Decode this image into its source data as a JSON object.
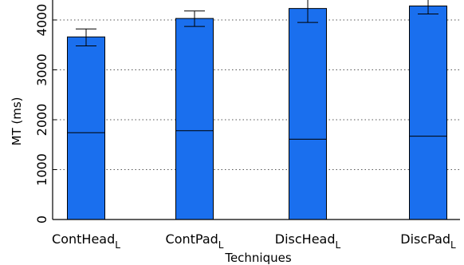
{
  "chart_data": {
    "type": "bar",
    "title": "",
    "xlabel": "Techniques",
    "ylabel": "MT (ms)",
    "ylim": [
      0,
      4400
    ],
    "yticks": [
      0,
      1000,
      2000,
      3000,
      4000
    ],
    "grid": true,
    "categories": [
      {
        "name": "ContHead",
        "subscript": "L"
      },
      {
        "name": "ContPad",
        "subscript": "L"
      },
      {
        "name": "DiscHead",
        "subscript": "L"
      },
      {
        "name": "DiscPad",
        "subscript": "L"
      }
    ],
    "values": [
      3660,
      4030,
      4230,
      4280
    ],
    "inner_line_values": [
      1740,
      1780,
      1610,
      1670
    ],
    "error_low": [
      3480,
      3870,
      3950,
      4120
    ],
    "error_high": [
      3820,
      4180,
      4460,
      4420
    ],
    "bar_color": "#1a6fee",
    "grid_color": "#555555"
  }
}
